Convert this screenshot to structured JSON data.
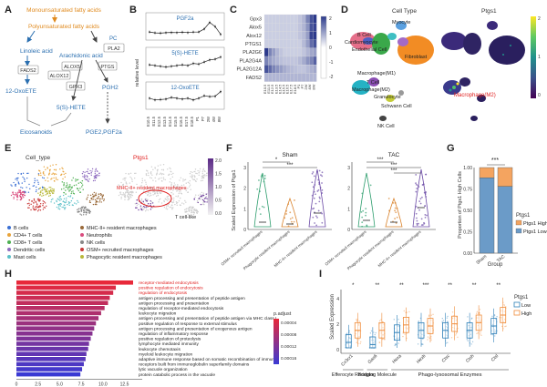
{
  "panels": {
    "a": {
      "letter": "A",
      "nodes": {
        "mufa": "Monounsaturated fatty acids",
        "pufa": "Polyunsaturated fatty acids",
        "linoleic": "Linoleic acid",
        "fads2": "FADS2",
        "oxoete": "12-OxoETE",
        "pc": "PC",
        "pla2": "PLA2",
        "arach": "Arachidonic acid",
        "alox5": "ALOX5",
        "ptgs": "PTGS",
        "alox12": "ALOX12",
        "gpx3": "GPX3",
        "pgh2": "PGH2",
        "shete": "5(S)-HETE",
        "eico": "Eicosanoids",
        "pge": "PGE2,PGF2a"
      }
    },
    "b": {
      "letter": "B",
      "ylabel": "relative level",
      "xticks": [
        "E10.5",
        "E11.5",
        "E12.5",
        "E13.5",
        "E14.5",
        "E15.5",
        "E16.5",
        "E17.5",
        "E18.5",
        "P1",
        "P7",
        "2W",
        "4W",
        "8W"
      ],
      "subplots": [
        {
          "title": "PGF2a",
          "values": [
            0.9,
            0.75,
            0.7,
            0.78,
            0.82,
            0.8,
            0.85,
            0.8,
            0.88,
            0.9,
            1.4,
            2.5,
            1.8,
            0.5
          ]
        },
        {
          "title": "5(S)-HETE",
          "values": [
            0.5,
            0.45,
            0.4,
            0.35,
            0.4,
            0.45,
            0.5,
            0.45,
            0.6,
            0.55,
            0.7,
            0.85,
            0.9,
            1.05
          ]
        },
        {
          "title": "12-OxoETE",
          "values": [
            0.5,
            0.4,
            0.42,
            0.45,
            0.55,
            0.5,
            0.45,
            0.5,
            0.4,
            0.5,
            0.65,
            0.6,
            0.62,
            0.9
          ]
        }
      ]
    },
    "c": {
      "letter": "C",
      "genes": [
        "Gpx3",
        "Alox5",
        "Alox12",
        "PTGS1",
        "PLA2G6",
        "PLA2G4A",
        "PLA2G12A",
        "FADS2"
      ],
      "columns": [
        "E10.5",
        "E11.5",
        "E12.5",
        "E13.5",
        "E14.5",
        "E15.5",
        "E16.5",
        "E17.5",
        "E18.5",
        "P1",
        "P7",
        "2W",
        "4W",
        "8W"
      ],
      "colorbar_ticks": [
        "2",
        "1",
        "0",
        "-1",
        "-2"
      ],
      "values": [
        [
          -1,
          -1,
          -1,
          -1,
          -1,
          -1,
          -1,
          -1,
          -1,
          -0.8,
          -0.5,
          0.5,
          1.5,
          2
        ],
        [
          -1,
          -1,
          -1,
          -1,
          -1,
          -1,
          -1,
          -1,
          -1,
          -0.8,
          -0.5,
          0.2,
          1.5,
          1.8
        ],
        [
          -1,
          -1,
          -1,
          -1,
          -1,
          -1,
          -1,
          -1,
          -1,
          -0.8,
          -0.6,
          0,
          1.8,
          2
        ],
        [
          -1,
          -1,
          -1,
          -1,
          -1,
          -1,
          -1,
          -1,
          -1,
          -1,
          -0.6,
          0,
          1,
          1.5
        ],
        [
          2,
          0.5,
          0,
          -0.5,
          -0.8,
          -1,
          -1,
          -1,
          -1,
          -1,
          -0.8,
          -0.5,
          -0.2,
          0
        ],
        [
          0.5,
          0,
          -0.3,
          -0.5,
          -0.7,
          -0.8,
          -0.8,
          -0.8,
          -0.8,
          -0.6,
          -0.3,
          0.2,
          0.5,
          1.2
        ],
        [
          1.5,
          1,
          0.5,
          0.2,
          0,
          -0.3,
          -0.5,
          -0.6,
          -0.7,
          -0.8,
          -0.8,
          -0.6,
          -0.4,
          -0.2
        ],
        [
          -0.5,
          -0.5,
          -0.5,
          -0.5,
          -0.5,
          -0.5,
          -0.5,
          -0.5,
          -0.5,
          -0.5,
          -0.5,
          -0.5,
          -0.5,
          -0.5
        ]
      ]
    },
    "d": {
      "letter": "D",
      "left_title": "Cell Type",
      "right_title": "Ptgs1",
      "labels": {
        "myocyte": "Myocyte",
        "bcell": "B Cell",
        "cardio": "Cardiomyocyte",
        "endo": "Endothelial Cell",
        "fibro": "Fibroblast",
        "mac1": "Macrophage(M1)",
        "tcell": "T Cell",
        "mac2": "Macrophage(M2)",
        "granu": "Granulocyte",
        "schwann": "Schwann Cell",
        "nk": "NK Cell",
        "mac2b": "Macrophage(M2)"
      },
      "colorbar_ticks": [
        "2",
        "1",
        "0"
      ]
    },
    "e": {
      "letter": "E",
      "left_title": "Cell_type",
      "right_title": "Ptgs1",
      "annotation": "MHC-II+ resident macrophages",
      "tcell_like": "T cell-like",
      "colorbar_ticks": [
        "2.0",
        "1.5",
        "1.0",
        "0.5",
        "0.0"
      ],
      "legend": [
        {
          "label": "B cells",
          "color": "#3b6fd4"
        },
        {
          "label": "CD4+ T cells",
          "color": "#e8a33a"
        },
        {
          "label": "CD8+ T cells",
          "color": "#4caf50"
        },
        {
          "label": "Dendritic cells",
          "color": "#8e6bbf"
        },
        {
          "label": "Mast cells",
          "color": "#5bc0c8"
        },
        {
          "label": "MHC-II+ resident macrophages",
          "color": "#9a6a3a"
        },
        {
          "label": "Neutrophils",
          "color": "#d94c7e"
        },
        {
          "label": "NK cells",
          "color": "#888888"
        },
        {
          "label": "OSM+ recruited macrophages",
          "color": "#c93838"
        },
        {
          "label": "Phagocytic resident macrophages",
          "color": "#b8b83a"
        }
      ]
    },
    "f": {
      "letter": "F",
      "ylabel": "Scaled Expression of Ptgs1",
      "yticks": [
        "3",
        "2",
        "1",
        "0"
      ],
      "groups": [
        {
          "title": "Sham",
          "cats": [
            "OSM+ recruited macrophages",
            "Phagocytic resident macrophages",
            "MHC-II+ resident macrophages"
          ],
          "sig": [
            "*",
            "***"
          ],
          "medians": [
            0.1,
            0.0,
            0.6
          ]
        },
        {
          "title": "TAC",
          "cats": [
            "OSM+ recruited macrophages",
            "Phagocytic resident macrophages",
            "MHC-II+ resident macrophages"
          ],
          "sig": [
            "***",
            "***",
            "***"
          ],
          "medians": [
            0.2,
            0.1,
            0.9
          ]
        }
      ]
    },
    "g": {
      "letter": "G",
      "ylabel": "Proportion of Ptgs1 High Cells",
      "xlabel": "Group",
      "sig": "***",
      "yticks": [
        "1.00",
        "0.75",
        "0.50",
        "0.25",
        "0.00"
      ],
      "categories": [
        "Sham",
        "TAC"
      ],
      "high": [
        0.12,
        0.22
      ],
      "legend_title": "Ptgs1",
      "legend": [
        {
          "label": "Ptgs1 High",
          "color": "#f4a460"
        },
        {
          "label": "Ptgs1 Low",
          "color": "#6b9bc8"
        }
      ]
    },
    "h": {
      "letter": "H",
      "xticks": [
        "0",
        "2.5",
        "5.0",
        "7.5",
        "10.0",
        "12.5"
      ],
      "padj_title": "p.adjust",
      "padj_ticks": [
        "0.00004",
        "0.00008",
        "0.00012",
        "0.00016"
      ],
      "terms": [
        {
          "label": "receptor-mediated endocytosis",
          "value": 13.5,
          "highlight": true
        },
        {
          "label": "positive regulation of endocytosis",
          "value": 11.5,
          "highlight": true
        },
        {
          "label": "regulation of endocytosis",
          "value": 11.2,
          "highlight": true
        },
        {
          "label": "antigen processing and presentation of peptide antigen",
          "value": 10.8,
          "highlight": false
        },
        {
          "label": "antigen processing and presentation",
          "value": 10.6,
          "highlight": false
        },
        {
          "label": "regulation of receptor-mediated endocytosis",
          "value": 10.2,
          "highlight": false
        },
        {
          "label": "leukocyte migration",
          "value": 9.8,
          "highlight": false
        },
        {
          "label": "antigen processing and presentation of peptide antigen via MHC class I",
          "value": 9.5,
          "highlight": false
        },
        {
          "label": "positive regulation of response to external stimulus",
          "value": 9.2,
          "highlight": false
        },
        {
          "label": "antigen processing and presentation of exogenous antigen",
          "value": 9.0,
          "highlight": false
        },
        {
          "label": "regulation of inflammatory response",
          "value": 8.8,
          "highlight": false
        },
        {
          "label": "positive regulation of proteolysis",
          "value": 8.6,
          "highlight": false
        },
        {
          "label": "lymphocyte mediated immunity",
          "value": 8.4,
          "highlight": false
        },
        {
          "label": "leukocyte chemotaxis",
          "value": 8.3,
          "highlight": false
        },
        {
          "label": "myeloid leukocyte migration",
          "value": 8.1,
          "highlight": false
        },
        {
          "label": "adaptive immune response based on somatic recombination of immune",
          "value": 8.0,
          "highlight": false
        },
        {
          "label": "receptors built from immunoglobulin superfamily domains",
          "value": 7.8,
          "highlight": false
        },
        {
          "label": "lytic vacuole organization",
          "value": 7.6,
          "highlight": false
        },
        {
          "label": "protein catabolic process in the vacuole",
          "value": 7.4,
          "highlight": false
        }
      ]
    },
    "i": {
      "letter": "I",
      "ylabel": "Scaled Expression",
      "yticks": [
        "4",
        "2",
        "0"
      ],
      "genes": [
        "Cx3cr1",
        "Gas6",
        "Hexa",
        "Hexb",
        "Ctsc",
        "Ctsh",
        "Ctsl"
      ],
      "sig": [
        "*",
        "**",
        "**",
        "***",
        "**",
        "**",
        "**"
      ],
      "low_medians": [
        0.5,
        0.3,
        1.4,
        1.6,
        1.6,
        1.6,
        2.0
      ],
      "high_medians": [
        1.6,
        1.6,
        2.1,
        2.0,
        2.2,
        2.3,
        3.0
      ],
      "groups": [
        {
          "label": "Efferocyte Receptor"
        },
        {
          "label": "Bridging Molecule"
        },
        {
          "label": "Phago-lysosomal Enzymes"
        }
      ],
      "legend_title": "Ptgs1",
      "legend": [
        {
          "label": "Low",
          "color": "#2d7fb8"
        },
        {
          "label": "High",
          "color": "#f08c3a"
        }
      ]
    }
  }
}
